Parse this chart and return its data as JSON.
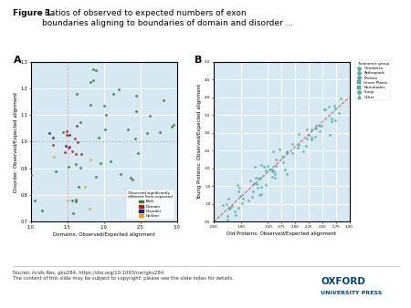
{
  "title_bold": "Figure 1.",
  "title_rest": " Ratios of observed to expected numbers of exon\nboundaries aligning to boundaries of domain and disorder ...",
  "panel_A_label": "A",
  "panel_B_label": "B",
  "panel_A_xlabel": "Domains: Observed/Expected alignment",
  "panel_A_ylabel": "Disorder: Observed/Expected alignment",
  "panel_B_xlabel": "Old Proteins: Observed/Expected alignment",
  "panel_B_ylabel": "Young Proteins: Observed/Expected alignment",
  "panel_A_xlim": [
    1.0,
    3.0
  ],
  "panel_A_ylim": [
    0.7,
    1.3
  ],
  "panel_B_xlim": [
    0.5,
    3.0
  ],
  "panel_B_ylim": [
    0.5,
    5.0
  ],
  "bg_color": "#d6e8f2",
  "grid_color": "#ffffff",
  "dot_color_both": "#2e7d32",
  "dot_color_domain": "#b71c1c",
  "dot_color_disorder": "#1a237e",
  "dot_color_neither": "#e6a817",
  "dot_color_B": "#4db6ac",
  "legend_A_title": "Observed significantly\ndifferent from expected",
  "legend_A_entries": [
    "Both",
    "Domain",
    "Disorder",
    "Neither"
  ],
  "legend_A_colors": [
    "#2e7d32",
    "#b71c1c",
    "#1a237e",
    "#e6a817"
  ],
  "legend_B_title": "Taxonomic group",
  "legend_B_entries": [
    "Chordates",
    "Arthropods",
    "Protists",
    "Green Plants",
    "Nematodes",
    "Fungi",
    "Other"
  ],
  "legend_B_markers": [
    "o",
    "o",
    "o",
    "s",
    "s",
    "o",
    "^"
  ],
  "footer_left": "Nucleic Acids Res, gku284, https://doi.org/10.1093/nar/gku284\nThe content of this slide may be subject to copyright: please see the slide notes for details.",
  "oxford_text": "OXFORD\nUNIVERSITY PRESS",
  "ref_line_color": "#aaaaaa",
  "diag_line_color": "#d32f2f"
}
